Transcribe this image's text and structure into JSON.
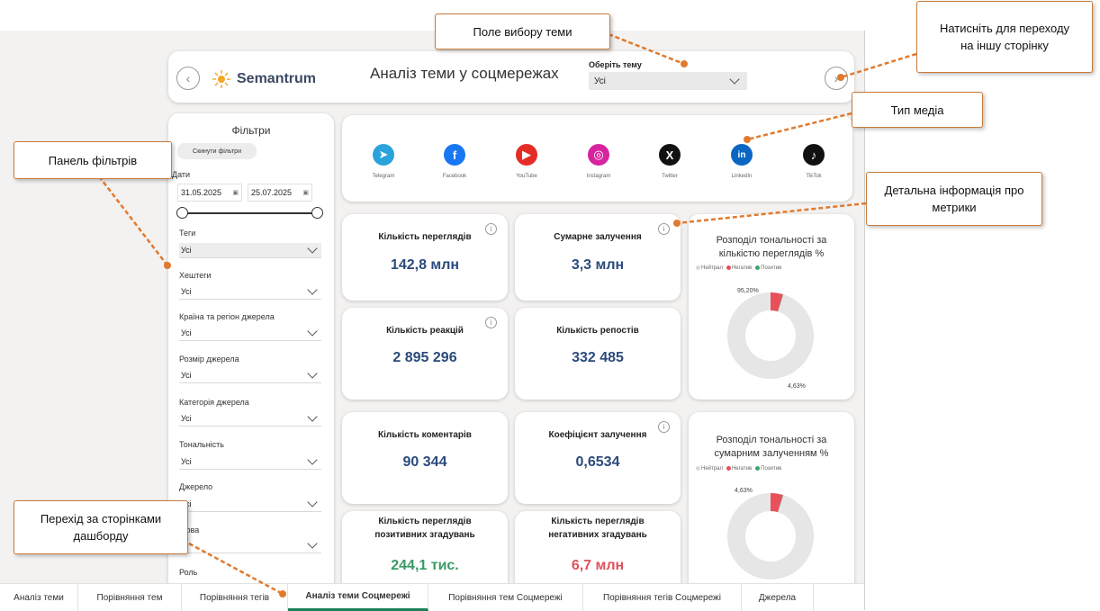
{
  "header": {
    "brand": "Semantrum",
    "title": "Аналіз теми у соцмережах",
    "theme_label": "Оберіть тему",
    "theme_value": "Усі"
  },
  "filters": {
    "title": "Фільтри",
    "reset_label": "Скинути фільтри",
    "dates_label": "Дати",
    "date_from": "31.05.2025",
    "date_to": "25.07.2025",
    "tags_label": "Теги",
    "tags_value": "Усі",
    "hashtags_label": "Хештеги",
    "hashtags_value": "Усі",
    "country_label": "Країна та регіон джерела",
    "country_value": "Усі",
    "size_label": "Розмір джерела",
    "size_value": "Усі",
    "category_label": "Категорія джерела",
    "category_value": "Усі",
    "tone_label": "Тональність",
    "tone_value": "Усі",
    "source_label": "Джерело",
    "source_value": "Усі",
    "lang_label": "Мова",
    "role_label": "Роль"
  },
  "media": [
    {
      "label": "Telegram",
      "icon": "telegram-icon",
      "color": "#2aa3dc"
    },
    {
      "label": "Facebook",
      "icon": "facebook-icon",
      "color": "#1877f2"
    },
    {
      "label": "YouTube",
      "icon": "youtube-icon",
      "color": "#e52d27"
    },
    {
      "label": "Instagram",
      "icon": "instagram-icon",
      "color": "#d6249f"
    },
    {
      "label": "Twitter",
      "icon": "x-icon",
      "color": "#111111"
    },
    {
      "label": "LinkedIn",
      "icon": "linkedin-icon",
      "color": "#0a66c2"
    },
    {
      "label": "TikTok",
      "icon": "tiktok-icon",
      "color": "#111111"
    }
  ],
  "metrics": {
    "views_title": "Кількість переглядів",
    "views_value": "142,8 млн",
    "engagement_title": "Сумарне залучення",
    "engagement_value": "3,3 млн",
    "reactions_title": "Кількість реакцій",
    "reactions_value": "2 895 296",
    "reposts_title": "Кількість репостів",
    "reposts_value": "332 485",
    "comments_title": "Кількість коментарів",
    "comments_value": "90 344",
    "coef_title": "Коефіцієнт залучення",
    "coef_value": "0,6534",
    "pos_title": "Кількість переглядів позитивних згадувань",
    "pos_value": "244,1 тис.",
    "neg_title": "Кількість переглядів негативних згадувань",
    "neg_value": "6,7 млн"
  },
  "donuts": {
    "views_title": "Розподіл тональності за кількістю переглядів %",
    "engagement_title": "Розподіл тональності за сумарним залученням %",
    "legend_neutral": "Нейтрал",
    "legend_negative": "Негатив",
    "legend_positive": "Позитив",
    "colors": {
      "neutral": "#e6e6e6",
      "negative": "#e8505b",
      "positive": "#3aa76d"
    }
  },
  "chart_data": [
    {
      "type": "pie",
      "title": "Розподіл тональності за кількістю переглядів %",
      "categories": [
        "Нейтрал",
        "Негатив",
        "Позитив"
      ],
      "values": [
        95.2,
        4.63,
        0.17
      ],
      "labels": [
        "95,20%",
        "4,63%"
      ]
    },
    {
      "type": "pie",
      "title": "Розподіл тональності за сумарним залученням %",
      "categories": [
        "Нейтрал",
        "Негатив",
        "Позитив"
      ],
      "values": [
        95.2,
        4.63,
        0.17
      ],
      "labels": [
        "4,63%"
      ]
    }
  ],
  "tabs": [
    "Аналіз теми",
    "Порівняння тем",
    "Порівняння тегів",
    "Аналіз теми Соцмережі",
    "Порівняння тем Соцмережі",
    "Порівняння тегів Соцмережі",
    "Джерела"
  ],
  "callouts": {
    "theme_select": "Поле вибору теми",
    "next_page": "Натисніть для переходу на іншу сторінку",
    "media_type": "Тип медіа",
    "filters_panel": "Панель фільтрів",
    "metrics_info": "Детальна інформація про метрики",
    "page_nav": "Перехід за сторінками дашборду"
  }
}
